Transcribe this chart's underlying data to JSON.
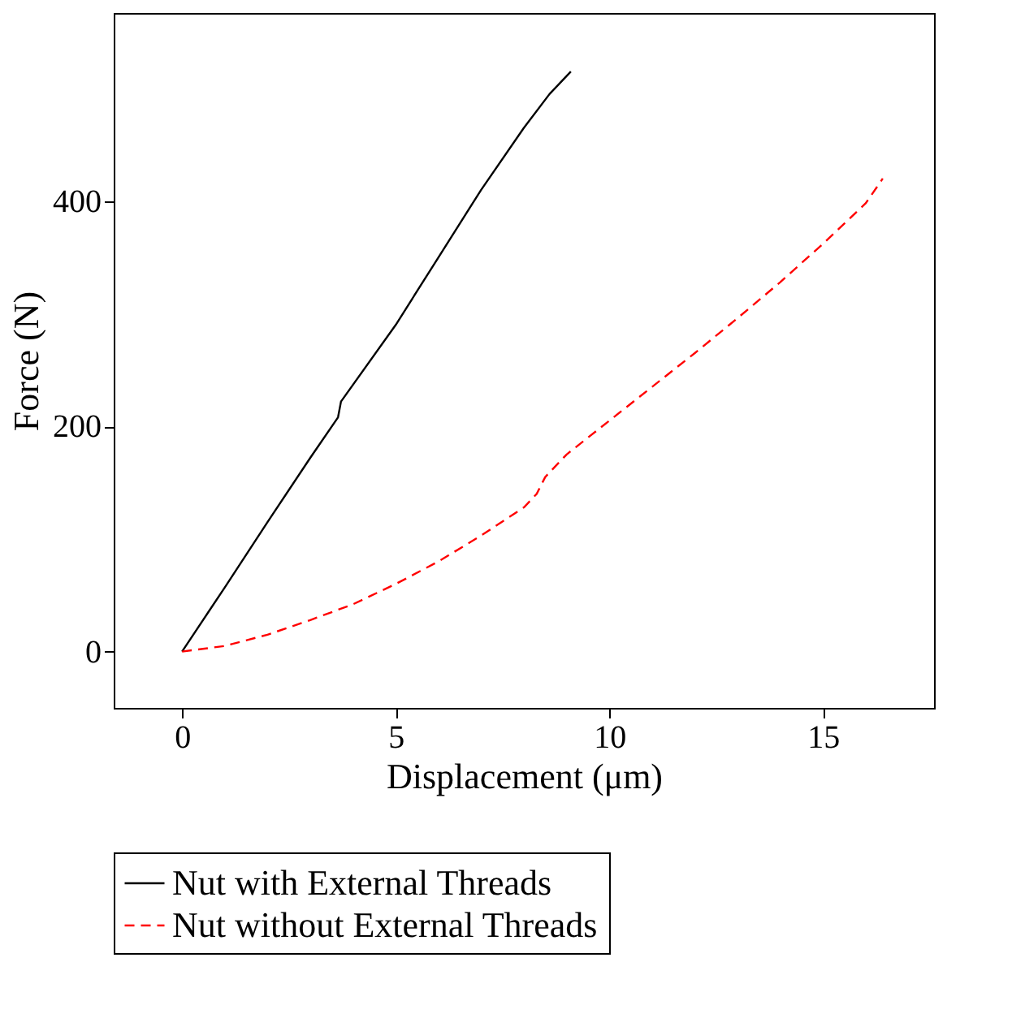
{
  "chart_data": {
    "type": "line",
    "xlabel": "Displacement (μm)",
    "ylabel": "Force (N)",
    "xlim": [
      -1.6,
      17.6
    ],
    "ylim": [
      -50,
      567
    ],
    "xticks": [
      0,
      5,
      10,
      15
    ],
    "yticks": [
      0,
      200,
      400
    ],
    "grid": false,
    "legend": "bottom",
    "marker": "none",
    "series": [
      {
        "name": "Nut with External Threads",
        "color": "#000000",
        "line_style": "solid",
        "x": [
          0,
          1,
          2,
          3,
          3.65,
          3.72,
          5,
          6,
          7,
          8,
          8.6,
          9.1
        ],
        "values": [
          0,
          57,
          115,
          172,
          208,
          222,
          290,
          350,
          410,
          465,
          495,
          515
        ]
      },
      {
        "name": "Nut without External Threads",
        "color": "#ff0000",
        "line_style": "dashed",
        "x": [
          0,
          1,
          2,
          3,
          4,
          5,
          6,
          7,
          8,
          8.3,
          8.5,
          9,
          10,
          11,
          12,
          13,
          14,
          15,
          16,
          16.4
        ],
        "values": [
          0,
          5,
          15,
          28,
          42,
          60,
          80,
          103,
          128,
          140,
          155,
          175,
          205,
          235,
          265,
          296,
          328,
          362,
          398,
          420
        ]
      }
    ]
  }
}
